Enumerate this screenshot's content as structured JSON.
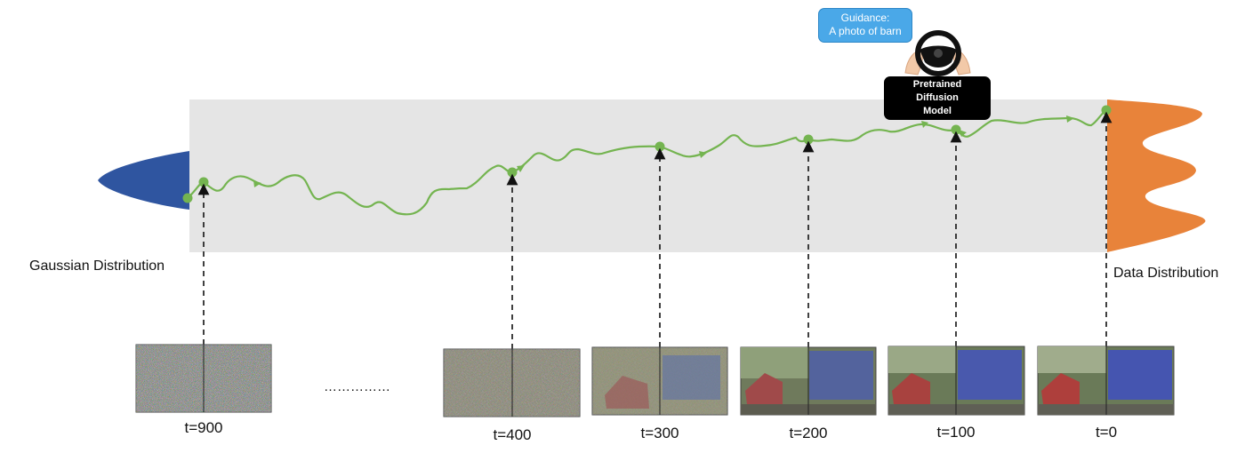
{
  "labels": {
    "gaussian": "Gaussian Distribution",
    "data": "Data Distribution",
    "ellipsis": "……………",
    "guidance_line1": "Guidance:",
    "guidance_line2": "A photo of barn",
    "model_line1": "Pretrained",
    "model_line2": "Diffusion",
    "model_line3": "Model"
  },
  "timesteps": [
    {
      "t": 900,
      "label": "t=900"
    },
    {
      "t": 400,
      "label": "t=400"
    },
    {
      "t": 300,
      "label": "t=300"
    },
    {
      "t": 200,
      "label": "t=200"
    },
    {
      "t": 100,
      "label": "t=100"
    },
    {
      "t": 0,
      "label": "t=0"
    }
  ],
  "colors": {
    "band": "#e5e5e5",
    "gaussian": "#2f55a0",
    "data": "#e8833a",
    "trajectory": "#74b450",
    "bubble": "#4aa8e8",
    "model_box": "#000000"
  },
  "icons": [
    "steering-wheel-icon",
    "hands-icon"
  ]
}
